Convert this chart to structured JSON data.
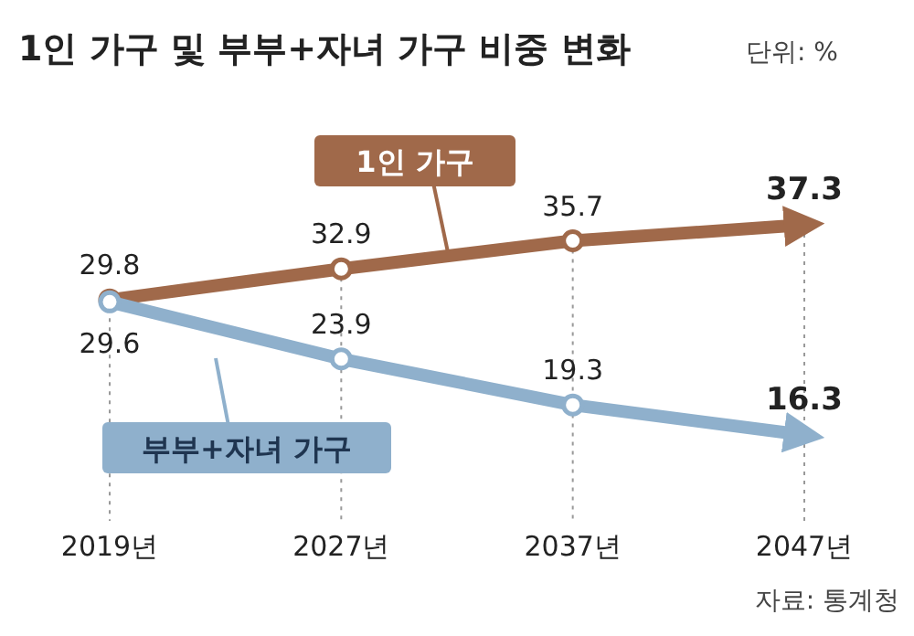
{
  "chart_data": {
    "type": "line",
    "title": "1인 가구 및 부부+자녀 가구 비중 변화",
    "subtitle": "단위: %",
    "categories": [
      "2019년",
      "2027년",
      "2037년",
      "2047년"
    ],
    "series": [
      {
        "name": "1인 가구",
        "color": "#a0694a",
        "values": [
          29.8,
          32.9,
          35.7,
          37.3
        ]
      },
      {
        "name": "부부+자녀 가구",
        "color": "#8fb0cc",
        "values": [
          29.6,
          23.9,
          19.3,
          16.3
        ]
      }
    ],
    "data_labels": true,
    "marker": "circle",
    "grid": "x",
    "legend": "bottom left",
    "annotations": [
      "자료: 통계청"
    ]
  }
}
